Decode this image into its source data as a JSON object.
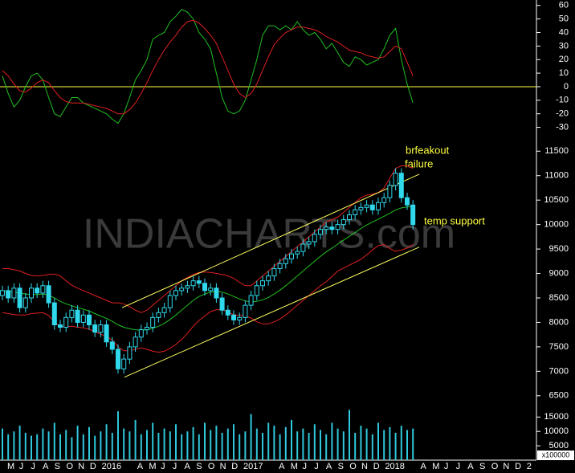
{
  "chart_data": [
    {
      "type": "line",
      "ylim": [
        -35,
        64
      ],
      "yticks": [
        60,
        50,
        40,
        30,
        20,
        10,
        0,
        -10,
        -20,
        -30
      ],
      "hline": 0,
      "hline_color": "#ffff40",
      "series": [
        {
          "color": "#20c020",
          "values": [
            8,
            -5,
            -15,
            -10,
            0,
            8,
            10,
            5,
            -8,
            -20,
            -22,
            -15,
            -8,
            -8,
            -12,
            -14,
            -16,
            -18,
            -20,
            -24,
            -27,
            -20,
            -8,
            5,
            12,
            20,
            35,
            38,
            40,
            48,
            52,
            57,
            55,
            50,
            40,
            35,
            28,
            10,
            -8,
            -18,
            -20,
            -18,
            -10,
            5,
            20,
            38,
            45,
            45,
            42,
            45,
            42,
            48,
            42,
            38,
            40,
            35,
            28,
            32,
            25,
            18,
            15,
            22,
            20,
            16,
            18,
            20,
            28,
            38,
            43,
            20,
            2,
            -12
          ]
        },
        {
          "color": "#e02020",
          "values": [
            12,
            8,
            2,
            -3,
            -4,
            -1,
            3,
            5,
            3,
            -3,
            -8,
            -11,
            -12,
            -12,
            -12,
            -13,
            -14,
            -15,
            -16,
            -18,
            -20,
            -20,
            -17,
            -12,
            -5,
            3,
            12,
            20,
            27,
            33,
            38,
            44,
            48,
            49,
            47,
            43,
            38,
            32,
            22,
            12,
            2,
            -5,
            -8,
            -5,
            2,
            12,
            22,
            31,
            36,
            40,
            42,
            44,
            44,
            43,
            42,
            40,
            37,
            35,
            33,
            30,
            27,
            26,
            25,
            23,
            22,
            21,
            22,
            26,
            30,
            28,
            18,
            8
          ]
        }
      ]
    },
    {
      "type": "candlestick",
      "ylim": [
        6300,
        11800
      ],
      "yticks": [
        11500,
        11000,
        10500,
        10000,
        9500,
        9000,
        8500,
        8000,
        7500,
        7000,
        6500
      ],
      "watermark": "INDIACHARTS.com",
      "color": "#30d8ec",
      "open": [
        8550,
        8650,
        8500,
        8700,
        8300,
        8500,
        8700,
        8600,
        8750,
        8400,
        7950,
        7900,
        8100,
        8250,
        8000,
        8150,
        7950,
        7800,
        7950,
        7600,
        7450,
        7050,
        7250,
        7500,
        7700,
        7850,
        7900,
        8100,
        8200,
        8300,
        8550,
        8650,
        8700,
        8750,
        8850,
        8800,
        8650,
        8700,
        8500,
        8250,
        8150,
        8050,
        8100,
        8350,
        8550,
        8750,
        8850,
        8950,
        9100,
        9200,
        9300,
        9400,
        9450,
        9600,
        9650,
        9800,
        9900,
        9950,
        9900,
        10000,
        10100,
        10200,
        10300,
        10350,
        10400,
        10300,
        10450,
        10550,
        10800,
        11050,
        10550,
        10400
      ],
      "high": [
        8750,
        8750,
        8800,
        8800,
        8600,
        8800,
        8800,
        8850,
        8850,
        8500,
        8050,
        8200,
        8350,
        8350,
        8250,
        8250,
        8050,
        8050,
        8050,
        7700,
        7550,
        7350,
        7600,
        7800,
        7950,
        8000,
        8200,
        8300,
        8400,
        8650,
        8750,
        8800,
        8850,
        8950,
        8950,
        8900,
        8800,
        8800,
        8600,
        8350,
        8250,
        8200,
        8450,
        8650,
        8850,
        8950,
        9050,
        9200,
        9300,
        9400,
        9500,
        9550,
        9700,
        9750,
        9900,
        10000,
        10050,
        10050,
        10100,
        10200,
        10300,
        10400,
        10450,
        10500,
        10500,
        10550,
        10650,
        10900,
        11150,
        11150,
        10650,
        10500
      ],
      "low": [
        8450,
        8400,
        8400,
        8200,
        8200,
        8400,
        8500,
        8500,
        8300,
        7850,
        7800,
        7800,
        8000,
        7900,
        7900,
        7850,
        7700,
        7700,
        7500,
        7350,
        6950,
        6950,
        7150,
        7400,
        7600,
        7750,
        7800,
        8000,
        8100,
        8200,
        8450,
        8550,
        8600,
        8650,
        8700,
        8550,
        8550,
        8400,
        8150,
        8050,
        7950,
        7950,
        8000,
        8250,
        8450,
        8650,
        8750,
        8850,
        9000,
        9100,
        9200,
        9300,
        9350,
        9500,
        9550,
        9700,
        9800,
        9800,
        9800,
        9900,
        10000,
        10100,
        10200,
        10250,
        10200,
        10200,
        10350,
        10450,
        10700,
        10450,
        10300,
        9900
      ],
      "close": [
        8650,
        8500,
        8700,
        8300,
        8500,
        8700,
        8600,
        8750,
        8400,
        7950,
        7900,
        8100,
        8250,
        8000,
        8150,
        7950,
        7800,
        7950,
        7600,
        7450,
        7050,
        7250,
        7500,
        7700,
        7850,
        7900,
        8100,
        8200,
        8300,
        8550,
        8650,
        8700,
        8750,
        8850,
        8800,
        8650,
        8700,
        8500,
        8250,
        8150,
        8050,
        8100,
        8350,
        8550,
        8750,
        8850,
        8950,
        9100,
        9200,
        9300,
        9400,
        9450,
        9600,
        9650,
        9800,
        9900,
        9950,
        9900,
        10000,
        10100,
        10200,
        10300,
        10350,
        10400,
        10300,
        10450,
        10550,
        10800,
        11050,
        10550,
        10400,
        10000
      ],
      "bands": {
        "band_color": "#e02020",
        "middle_color": "#20c020",
        "upper": [
          9100,
          9100,
          9080,
          9050,
          9000,
          8960,
          8950,
          8960,
          8980,
          8990,
          8950,
          8850,
          8760,
          8700,
          8650,
          8600,
          8550,
          8500,
          8450,
          8400,
          8400,
          8380,
          8320,
          8250,
          8200,
          8250,
          8350,
          8450,
          8550,
          8650,
          8750,
          8850,
          8920,
          8980,
          9020,
          9030,
          9020,
          9000,
          8980,
          8950,
          8900,
          8820,
          8750,
          8750,
          8850,
          8950,
          9050,
          9150,
          9250,
          9350,
          9450,
          9550,
          9650,
          9750,
          9850,
          9950,
          10050,
          10100,
          10150,
          10250,
          10350,
          10450,
          10550,
          10600,
          10620,
          10650,
          10750,
          10950,
          11150,
          11200,
          11200,
          11150
        ],
        "middle": [
          8650,
          8640,
          8620,
          8600,
          8580,
          8570,
          8570,
          8580,
          8560,
          8500,
          8430,
          8380,
          8340,
          8300,
          8270,
          8230,
          8180,
          8130,
          8080,
          8020,
          7950,
          7900,
          7870,
          7850,
          7840,
          7850,
          7880,
          7920,
          7980,
          8060,
          8150,
          8250,
          8350,
          8450,
          8530,
          8580,
          8620,
          8630,
          8620,
          8580,
          8530,
          8480,
          8440,
          8420,
          8430,
          8460,
          8510,
          8580,
          8660,
          8750,
          8850,
          8950,
          9050,
          9150,
          9250,
          9350,
          9440,
          9520,
          9600,
          9680,
          9760,
          9840,
          9920,
          9990,
          10050,
          10110,
          10170,
          10230,
          10300,
          10340,
          10360,
          10370
        ],
        "lower": [
          8200,
          8180,
          8160,
          8150,
          8150,
          8180,
          8190,
          8200,
          8140,
          8010,
          7910,
          7910,
          7920,
          7900,
          7890,
          7860,
          7810,
          7760,
          7710,
          7640,
          7500,
          7420,
          7420,
          7450,
          7480,
          7450,
          7410,
          7390,
          7410,
          7470,
          7550,
          7650,
          7780,
          7920,
          8040,
          8130,
          8220,
          8260,
          8260,
          8210,
          8160,
          8140,
          8130,
          8090,
          8010,
          7970,
          7970,
          8010,
          8070,
          8150,
          8250,
          8350,
          8450,
          8550,
          8650,
          8750,
          8830,
          8940,
          9050,
          9110,
          9170,
          9230,
          9290,
          9380,
          9480,
          9570,
          9590,
          9510,
          9450,
          9480,
          9520,
          9590
        ]
      },
      "trendline_color": "#ffff60",
      "trendlines": [
        {
          "x": [
            20.7,
            72.1
          ],
          "y": [
            8300,
            11030
          ]
        },
        {
          "x": [
            21.1,
            72.1
          ],
          "y": [
            6880,
            9540
          ]
        }
      ],
      "annotations": [
        "brfeakout",
        "failure",
        "temp support"
      ]
    },
    {
      "type": "bar",
      "ylim": [
        0,
        19000
      ],
      "yticks": [
        15000,
        10000,
        5000
      ],
      "unit_label": "x100000",
      "color": "#30c8dc",
      "values": [
        11000,
        9000,
        10000,
        12000,
        9500,
        8500,
        9000,
        11000,
        10000,
        13000,
        9000,
        10500,
        8000,
        12000,
        9000,
        11500,
        8500,
        10000,
        12500,
        9500,
        17000,
        11000,
        10000,
        14000,
        9000,
        10500,
        13000,
        9500,
        11000,
        10000,
        12500,
        9000,
        10000,
        11500,
        9000,
        13000,
        10500,
        12000,
        9500,
        11000,
        12500,
        9000,
        10000,
        16000,
        11000,
        9500,
        13000,
        12000,
        9000,
        11500,
        14000,
        10000,
        11000,
        9500,
        12500,
        10500,
        9000,
        13000,
        11000,
        10000,
        17500,
        9500,
        12000,
        11000,
        9000,
        13000,
        10500,
        11500,
        9500,
        12000,
        10500,
        11000
      ],
      "xtick_labels": [
        "M",
        "J",
        "J",
        "A",
        "S",
        "O",
        "N",
        "D",
        "2016",
        null,
        null,
        "A",
        "M",
        "J",
        "J",
        "A",
        "S",
        "O",
        "N",
        "D",
        "2017",
        null,
        null,
        "A",
        "M",
        "J",
        "J",
        "A",
        "S",
        "O",
        "N",
        "D",
        "2018",
        null,
        null,
        "A",
        "M",
        "J",
        "J",
        "A",
        "S",
        "O",
        "N",
        "D",
        "2"
      ]
    }
  ]
}
